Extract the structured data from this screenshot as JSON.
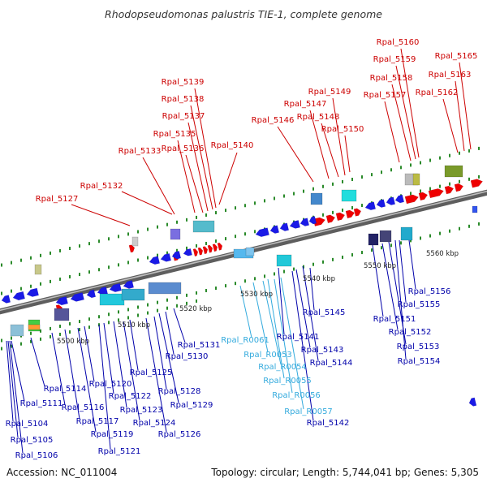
{
  "title": "Rhodopseudomonas palustris TIE-1, complete genome",
  "footer": {
    "accession": "Accession: NC_011004",
    "topology": "Topology: circular; Length: 5,744,041 bp; Genes: 5,305"
  },
  "colors": {
    "forward_label": "#cc0000",
    "reverse_label": "#0000aa",
    "rna_label": "#33aadd",
    "axis": "#7a7a7a"
  },
  "scale_labels": [
    "5500 kbp",
    "5510 kbp",
    "5520 kbp",
    "5530 kbp",
    "5540 kbp",
    "5550 kbp",
    "5560 kbp"
  ],
  "labels_forward": [
    "Rpal_5127",
    "Rpal_5132",
    "Rpal_5133",
    "Rpal_5135",
    "Rpal_5136",
    "Rpal_5137",
    "Rpal_5138",
    "Rpal_5139",
    "Rpal_5140",
    "Rpal_5146",
    "Rpal_5147",
    "Rpal_5148",
    "Rpal_5149",
    "Rpal_5150",
    "Rpal_5157",
    "Rpal_5158",
    "Rpal_5159",
    "Rpal_5160",
    "Rpal_5162",
    "Rpal_5163",
    "Rpal_5165"
  ],
  "labels_reverse": [
    "Rpal_5104",
    "Rpal_5105",
    "Rpal_5106",
    "Rpal_5111",
    "Rpal_5114",
    "Rpal_5116",
    "Rpal_5117",
    "Rpal_5119",
    "Rpal_5120",
    "Rpal_5121",
    "Rpal_5122",
    "Rpal_5123",
    "Rpal_5124",
    "Rpal_5125",
    "Rpal_5126",
    "Rpal_5128",
    "Rpal_5129",
    "Rpal_5130",
    "Rpal_5131",
    "Rpal_5141",
    "Rpal_5142",
    "Rpal_5143",
    "Rpal_5144",
    "Rpal_5145",
    "Rpal_5151",
    "Rpal_5152",
    "Rpal_5153",
    "Rpal_5154",
    "Rpal_5155",
    "Rpal_5156"
  ],
  "labels_rna": [
    "Rpal_R0061",
    "Rpal_R0053",
    "Rpal_R0054",
    "Rpal_R0055",
    "Rpal_R0056",
    "Rpal_R0057"
  ]
}
